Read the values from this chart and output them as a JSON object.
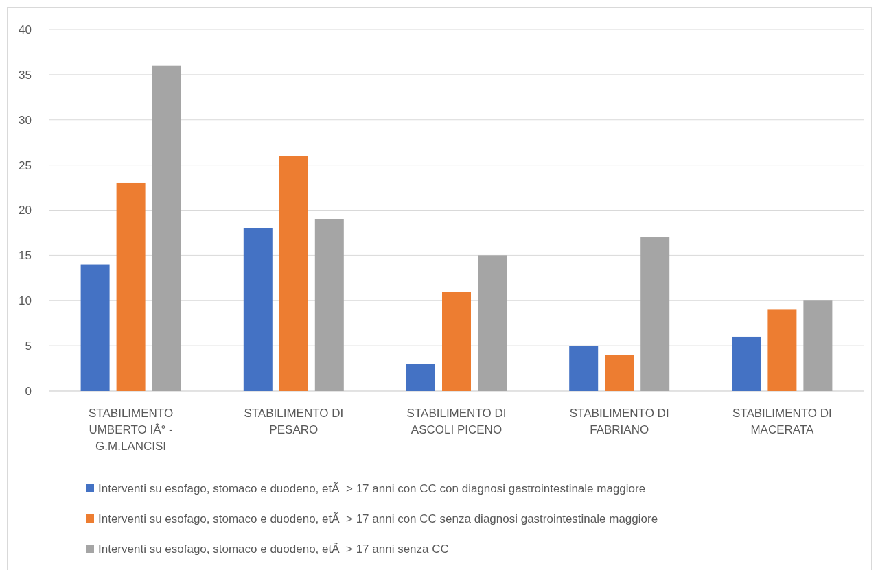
{
  "chart_data": {
    "type": "bar",
    "categories": [
      "STABILIMENTO UMBERTO IÂ° - G.M.LANCISI",
      "STABILIMENTO DI PESARO",
      "STABILIMENTO DI ASCOLI PICENO",
      "STABILIMENTO DI FABRIANO",
      "STABILIMENTO DI MACERATA"
    ],
    "series": [
      {
        "name": "Interventi su esofago, stomaco e duodeno, etÃ  > 17 anni con CC con diagnosi gastrointestinale maggiore",
        "color": "#4472c4",
        "values": [
          14,
          18,
          3,
          5,
          6
        ]
      },
      {
        "name": "Interventi su esofago, stomaco e duodeno, etÃ  > 17 anni con CC senza diagnosi gastrointestinale maggiore",
        "color": "#ed7d31",
        "values": [
          23,
          26,
          11,
          4,
          9
        ]
      },
      {
        "name": "Interventi su esofago, stomaco e duodeno, etÃ  > 17 anni senza CC",
        "color": "#a5a5a5",
        "values": [
          36,
          19,
          15,
          17,
          10
        ]
      }
    ],
    "ylim": [
      0,
      40
    ],
    "yticks": [
      0,
      5,
      10,
      15,
      20,
      25,
      30,
      35,
      40
    ],
    "grid": "y",
    "legend": "bottom"
  }
}
